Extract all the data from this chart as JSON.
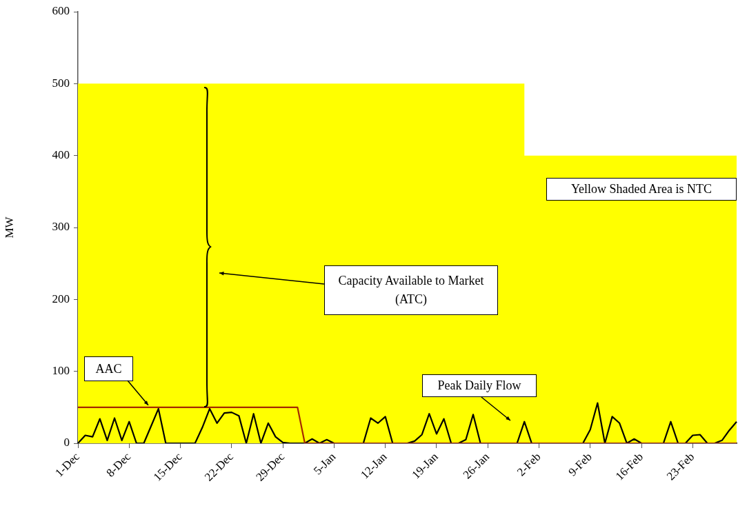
{
  "chart_data": {
    "type": "line",
    "ylabel": "MW",
    "ylim": [
      0,
      600
    ],
    "yticks": [
      0,
      100,
      200,
      300,
      400,
      500,
      600
    ],
    "grid": false,
    "legend": false,
    "marker": "none",
    "line_style": "solid",
    "categories": [
      "1-Dec",
      null,
      null,
      null,
      null,
      null,
      null,
      "8-Dec",
      null,
      null,
      null,
      null,
      null,
      null,
      "15-Dec",
      null,
      null,
      null,
      null,
      null,
      null,
      "22-Dec",
      null,
      null,
      null,
      null,
      null,
      null,
      "29-Dec",
      null,
      null,
      null,
      null,
      null,
      null,
      "5-Jan",
      null,
      null,
      null,
      null,
      null,
      null,
      "12-Jan",
      null,
      null,
      null,
      null,
      null,
      null,
      "19-Jan",
      null,
      null,
      null,
      null,
      null,
      null,
      "26-Jan",
      null,
      null,
      null,
      null,
      null,
      null,
      "2-Feb",
      null,
      null,
      null,
      null,
      null,
      null,
      "9-Feb",
      null,
      null,
      null,
      null,
      null,
      null,
      "16-Feb",
      null,
      null,
      null,
      null,
      null,
      null,
      "23-Feb",
      null,
      null,
      null,
      null,
      null,
      null
    ],
    "series": [
      {
        "type": "area",
        "color": "#ffff00",
        "values": [
          500,
          500,
          500,
          500,
          500,
          500,
          500,
          500,
          500,
          500,
          500,
          500,
          500,
          500,
          500,
          500,
          500,
          500,
          500,
          500,
          500,
          500,
          500,
          500,
          500,
          500,
          500,
          500,
          500,
          500,
          500,
          500,
          500,
          500,
          500,
          500,
          500,
          500,
          500,
          500,
          500,
          500,
          500,
          500,
          500,
          500,
          500,
          500,
          500,
          500,
          500,
          500,
          500,
          500,
          500,
          500,
          500,
          500,
          500,
          500,
          500,
          500,
          400,
          400,
          400,
          400,
          400,
          400,
          400,
          400,
          400,
          400,
          400,
          400,
          400,
          400,
          400,
          400,
          400,
          400,
          400,
          400,
          400,
          400,
          400,
          400,
          400,
          400,
          400,
          400,
          400
        ]
      },
      {
        "type": "line",
        "color": "#a52a00",
        "values": [
          50,
          50,
          50,
          50,
          50,
          50,
          50,
          50,
          50,
          50,
          50,
          50,
          50,
          50,
          50,
          50,
          50,
          50,
          50,
          50,
          50,
          50,
          50,
          50,
          50,
          50,
          50,
          50,
          50,
          50,
          50,
          0,
          0,
          0,
          0,
          0,
          0,
          0,
          0,
          0,
          0,
          0,
          0,
          0,
          0,
          0,
          0,
          0,
          0,
          0,
          0,
          0,
          0,
          0,
          0,
          0,
          0,
          0,
          0,
          0,
          0,
          0,
          0,
          0,
          0,
          0,
          0,
          0,
          0,
          0,
          0,
          0,
          0,
          0,
          0,
          0,
          0,
          0,
          0,
          0,
          0,
          0,
          0,
          0,
          0,
          0,
          0,
          0,
          0,
          0,
          0
        ]
      },
      {
        "type": "line",
        "color": "#000000",
        "values": [
          0,
          11,
          9,
          34,
          4,
          35,
          4,
          30,
          0,
          0,
          24,
          48,
          0,
          0,
          0,
          0,
          0,
          22,
          48,
          28,
          42,
          43,
          38,
          0,
          41,
          0,
          28,
          9,
          1,
          0,
          0,
          0,
          6,
          0,
          5,
          0,
          0,
          0,
          0,
          0,
          35,
          28,
          37,
          0,
          0,
          0,
          3,
          12,
          41,
          13,
          34,
          0,
          0,
          5,
          40,
          0,
          0,
          0,
          0,
          0,
          0,
          30,
          0,
          0,
          0,
          0,
          0,
          0,
          0,
          0,
          19,
          56,
          0,
          37,
          28,
          0,
          6,
          0,
          0,
          0,
          0,
          30,
          0,
          0,
          11,
          12,
          0,
          0,
          4,
          18,
          30
        ]
      }
    ],
    "annotations": [
      {
        "text": "AAC",
        "y": 50
      },
      "Capacity Available to Market (ATC)",
      "Peak Daily Flow",
      "Yellow Shaded Area is NTC"
    ]
  }
}
